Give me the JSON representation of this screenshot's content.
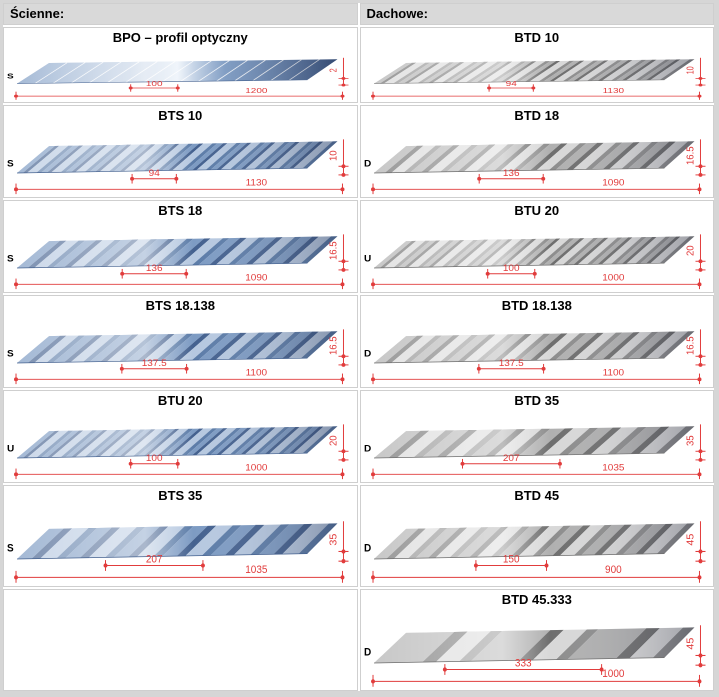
{
  "colors": {
    "dimension_red": "#e13c3c",
    "header_bg": "#d9d9d9",
    "cell_border": "#cfcfcf",
    "page_frame": "#d6d6d6",
    "blue_palette": {
      "dark": "#44618f",
      "mid": "#7d9bc3",
      "light": "#b6c8e0",
      "web": "#5c7ca8",
      "bright": "#edf3fa"
    },
    "gray_palette": {
      "dark": "#6e6e6e",
      "mid": "#b0b0b0",
      "light": "#d8d8d8",
      "web": "#8d8d8d",
      "bright": "#f2f2f2"
    }
  },
  "columns": [
    {
      "header": "Ścienne:",
      "palette": "blue",
      "cells": [
        {
          "title": "BPO – profil optyczny",
          "letter": "S",
          "pitch": "100",
          "width": "1200",
          "height": "2",
          "ribs": 16,
          "style": "flat"
        },
        {
          "title": "BTS 10",
          "letter": "S",
          "pitch": "94",
          "width": "1130",
          "height": "10",
          "ribs": 12,
          "style": "trap"
        },
        {
          "title": "BTS 18",
          "letter": "S",
          "pitch": "136",
          "width": "1090",
          "height": "16.5",
          "ribs": 8,
          "style": "trap"
        },
        {
          "title": "BTS 18.138",
          "letter": "S",
          "pitch": "137.5",
          "width": "1100",
          "height": "16.5",
          "ribs": 8,
          "style": "trap"
        },
        {
          "title": "BTU 20",
          "letter": "U",
          "pitch": "100",
          "width": "1000",
          "height": "20",
          "ribs": 12,
          "style": "trap"
        },
        {
          "title": "BTS 35",
          "letter": "S",
          "pitch": "207",
          "width": "1035",
          "height": "35",
          "ribs": 6,
          "style": "trap"
        },
        {
          "empty": true
        }
      ]
    },
    {
      "header": "Dachowe:",
      "palette": "gray",
      "cells": [
        {
          "title": "BTD 10",
          "letter": "",
          "pitch": "94",
          "width": "1130",
          "height": "10",
          "ribs": 12,
          "style": "trap"
        },
        {
          "title": "BTD 18",
          "letter": "D",
          "pitch": "136",
          "width": "1090",
          "height": "16.5",
          "ribs": 8,
          "style": "trap"
        },
        {
          "title": "BTU 20",
          "letter": "U",
          "pitch": "100",
          "width": "1000",
          "height": "20",
          "ribs": 12,
          "style": "trap"
        },
        {
          "title": "BTD 18.138",
          "letter": "D",
          "pitch": "137.5",
          "width": "1100",
          "height": "16.5",
          "ribs": 8,
          "style": "trap"
        },
        {
          "title": "BTD 35",
          "letter": "D",
          "pitch": "207",
          "width": "1035",
          "height": "35",
          "ribs": 6,
          "style": "trap"
        },
        {
          "title": "BTD 45",
          "letter": "D",
          "pitch": "150",
          "width": "900",
          "height": "45",
          "ribs": 7,
          "style": "trap"
        },
        {
          "title": "BTD 45.333",
          "letter": "D",
          "pitch": "333",
          "width": "1000",
          "height": "45",
          "ribs": 3,
          "style": "trap"
        }
      ]
    }
  ]
}
